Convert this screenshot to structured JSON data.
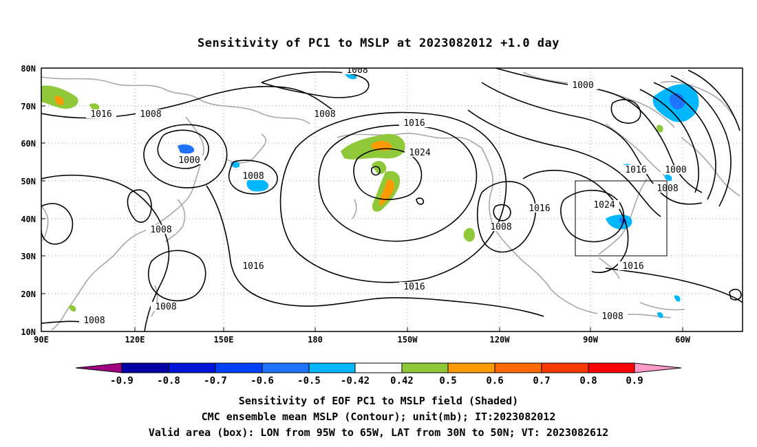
{
  "title": "Sensitivity of PC1 to MSLP at 2023082012 +1.0 day",
  "map": {
    "lat_labels": [
      "80N",
      "70N",
      "60N",
      "50N",
      "40N",
      "30N",
      "20N",
      "10N"
    ],
    "lon_labels": [
      "90E",
      "120E",
      "150E",
      "180",
      "150W",
      "120W",
      "90W",
      "60W"
    ],
    "extent": {
      "lon_west": "90E",
      "lon_east": "45W",
      "lat_south": "10N",
      "lat_north": "80N"
    },
    "grid_lines": "dotted",
    "coastlines_color": "#a8a8a8",
    "contour_color": "#000000",
    "contour_labels": [
      "1008",
      "1000",
      "1016",
      "1008",
      "1008",
      "1016",
      "1024",
      "1000",
      "1008",
      "1016",
      "1000",
      "1008",
      "1024",
      "1008",
      "1016",
      "1016",
      "1008",
      "1016",
      "1008",
      "1008",
      "1008",
      "1016"
    ],
    "valid_box_label": "LON from 95W to 65W, LAT from 30N to 50N"
  },
  "colorbar": {
    "labels": [
      "-0.9",
      "-0.8",
      "-0.7",
      "-0.6",
      "-0.5",
      "-0.42",
      "0.42",
      "0.5",
      "0.6",
      "0.7",
      "0.8",
      "0.9"
    ],
    "colors": [
      "#a0007f",
      "#0000a6",
      "#0015d8",
      "#0040ff",
      "#1f73ff",
      "#00b6ff",
      "#ffffff",
      "#8fc93a",
      "#ff9a00",
      "#ff6a00",
      "#ff3a00",
      "#ff0000",
      "#ff9ac9"
    ]
  },
  "captions": [
    "Sensitivity of EOF PC1 to MSLP field (Shaded)",
    "CMC ensemble mean MSLP (Contour); unit(mb); IT:2023082012",
    "Valid area (box): LON from 95W to 65W, LAT from 30N to 50N; VT: 2023082612"
  ]
}
